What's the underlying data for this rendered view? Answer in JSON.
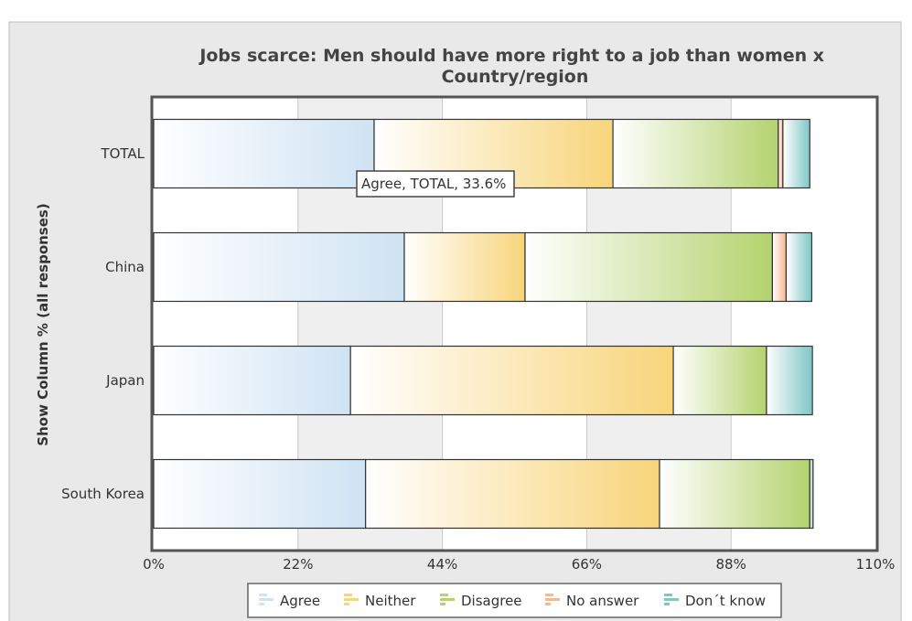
{
  "chart_data": {
    "type": "bar",
    "orientation": "horizontal",
    "stacked": true,
    "title": "Jobs scarce: Men should have more right to a job than women x Country/region",
    "ylabel": "Show Column % (all responses)",
    "xlabel": "",
    "xlim": [
      0,
      110
    ],
    "xticks": [
      "0%",
      "22%",
      "44%",
      "66%",
      "88%",
      "110%"
    ],
    "grid": true,
    "legend_position": "bottom",
    "categories": [
      "TOTAL",
      "China",
      "Japan",
      "South Korea"
    ],
    "series": [
      {
        "name": "Agree",
        "color": "#cfe3f3",
        "values": [
          33.6,
          38.2,
          30.0,
          32.3
        ]
      },
      {
        "name": "Neither",
        "color": "#f8d57a",
        "values": [
          36.4,
          18.4,
          49.2,
          44.8
        ]
      },
      {
        "name": "Disagree",
        "color": "#b4d36e",
        "values": [
          25.2,
          37.7,
          14.2,
          22.9
        ]
      },
      {
        "name": "No answer",
        "color": "#f5b891",
        "values": [
          0.7,
          2.1,
          0.0,
          0.0
        ]
      },
      {
        "name": "Don´t know",
        "color": "#7fc6c6",
        "values": [
          4.1,
          3.9,
          7.0,
          0.5
        ]
      }
    ],
    "tooltip": {
      "text": "Agree, TOTAL, 33.6%"
    }
  }
}
